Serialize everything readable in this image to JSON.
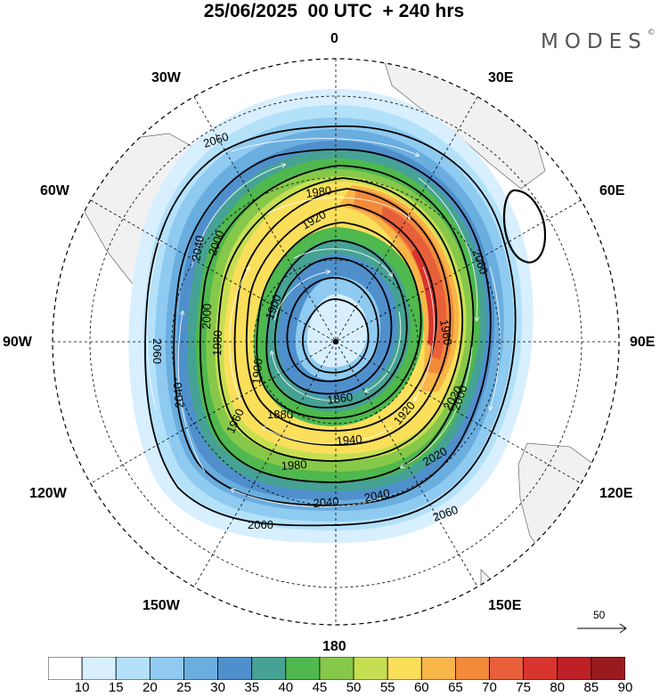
{
  "title": "25/06/2025  00 UTC  + 240 hrs",
  "brand": "MODES",
  "brand_mark": "©",
  "longitude_labels": {
    "n": "0",
    "s": "180",
    "e90": "90E",
    "w90": "90W",
    "e30": "30E",
    "w30": "30W",
    "e60": "60E",
    "w60": "60W",
    "e120": "120E",
    "w120": "120W",
    "e150": "150E",
    "w150": "150W"
  },
  "contour_labels": [
    "2060",
    "2060",
    "2060",
    "2060",
    "2060",
    "2040",
    "2040",
    "2040",
    "2040",
    "2020",
    "2020",
    "2000",
    "2000",
    "2000",
    "1980",
    "1980",
    "1980",
    "1960",
    "1960",
    "1940",
    "1920",
    "1920",
    "1900",
    "1900",
    "1880",
    "1860"
  ],
  "reference_vector": {
    "value": "50",
    "icon": "arrow-right-icon"
  },
  "colorbar": {
    "labels": [
      "10",
      "15",
      "20",
      "25",
      "30",
      "35",
      "40",
      "45",
      "50",
      "55",
      "60",
      "65",
      "70",
      "75",
      "80",
      "85",
      "90"
    ],
    "colors": [
      "#ffffff",
      "#d7efff",
      "#b4e1fa",
      "#8fcaf0",
      "#6aaee0",
      "#4f90cc",
      "#46a294",
      "#4fb84e",
      "#86c84a",
      "#c6df52",
      "#fadf5a",
      "#f8b548",
      "#f28a3a",
      "#e8603a",
      "#d8352e",
      "#bd2127",
      "#9a1a1e"
    ]
  }
}
